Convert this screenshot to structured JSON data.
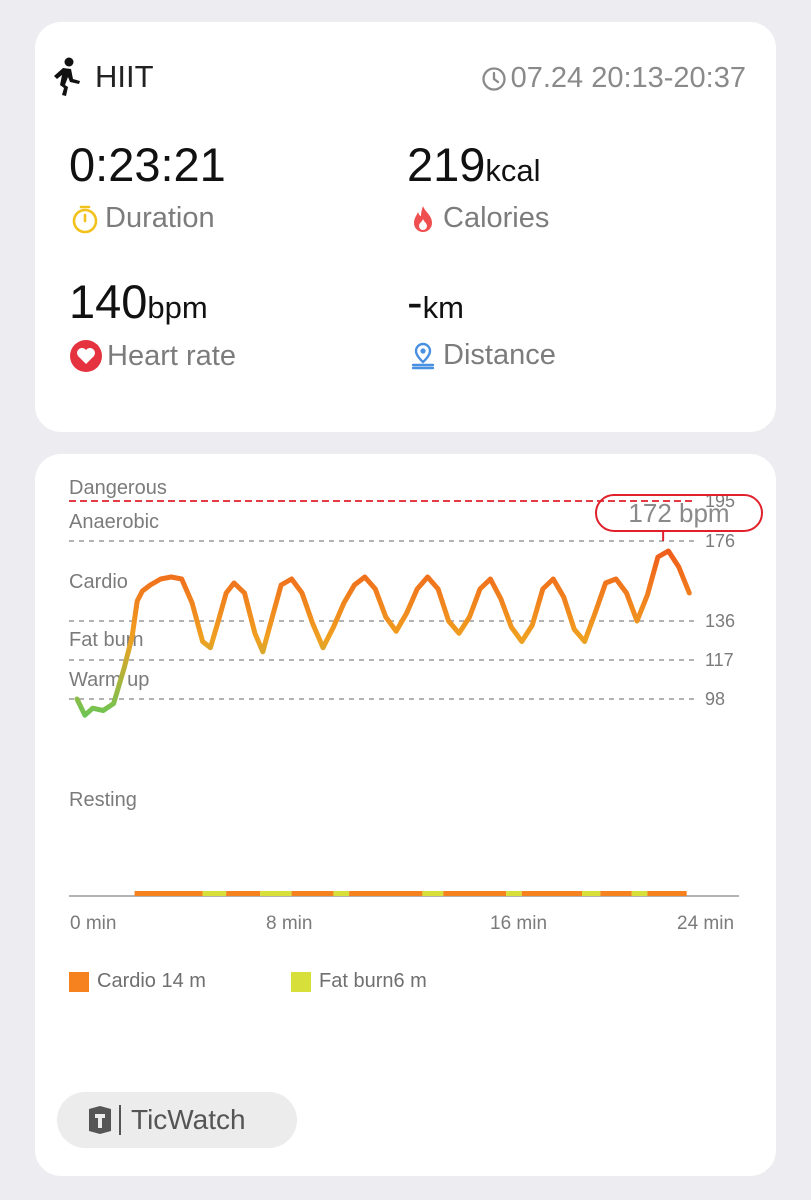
{
  "summary": {
    "activity": "HIIT",
    "activity_icon": "running-person-icon",
    "time_range": "07.24 20:13-20:37",
    "metrics": {
      "duration": {
        "value": "0:23:21",
        "unit": "",
        "label": "Duration",
        "icon": "stopwatch-icon",
        "icon_color": "#f2c11b"
      },
      "calories": {
        "value": "219",
        "unit": "kcal",
        "label": "Calories",
        "icon": "flame-icon",
        "icon_color": "#ef4f4f"
      },
      "heart_rate": {
        "value": "140",
        "unit": "bpm",
        "label": "Heart rate",
        "icon": "heart-icon",
        "icon_color": "#e5323f"
      },
      "distance": {
        "value": "-",
        "unit": "km",
        "label": "Distance",
        "icon": "location-pin-icon",
        "icon_color": "#4a90e2"
      }
    }
  },
  "chart_data": {
    "type": "line",
    "series": [
      {
        "x": [
          0,
          0.3,
          0.6,
          1,
          1.4,
          1.8,
          2.1,
          2.3,
          2.5,
          2.8,
          3.2,
          3.6,
          4,
          4.4,
          4.8,
          5.1,
          5.4,
          5.7,
          6,
          6.4,
          6.8,
          7.1,
          7.4,
          7.8,
          8.2,
          8.6,
          9,
          9.4,
          9.8,
          10.2,
          10.6,
          11,
          11.4,
          11.8,
          12.2,
          12.6,
          13,
          13.4,
          13.8,
          14.2,
          14.6,
          15,
          15.4,
          15.8,
          16.2,
          16.6,
          17,
          17.4,
          17.8,
          18.2,
          18.6,
          19,
          19.4,
          19.8,
          20.2,
          20.6,
          21,
          21.4,
          21.8,
          22.2,
          22.6,
          23,
          23.4
        ],
        "values": [
          98,
          91,
          94,
          93,
          96,
          113,
          128,
          146,
          151,
          154,
          157,
          158,
          157,
          145,
          126,
          123,
          136,
          150,
          155,
          150,
          130,
          121,
          135,
          154,
          157,
          150,
          135,
          123,
          133,
          145,
          154,
          158,
          152,
          138,
          131,
          140,
          152,
          158,
          152,
          136,
          130,
          138,
          152,
          157,
          147,
          133,
          126,
          134,
          152,
          157,
          148,
          132,
          126,
          140,
          155,
          157,
          150,
          136,
          149,
          168,
          171,
          163,
          150
        ]
      }
    ],
    "peak": {
      "label": "172 bpm",
      "x": 22.4,
      "value": 172
    },
    "zones": [
      {
        "name": "Dangerous",
        "threshold": 195
      },
      {
        "name": "Anaerobic",
        "threshold": 176
      },
      {
        "name": "Cardio",
        "threshold": 136
      },
      {
        "name": "Fat burn",
        "threshold": 117
      },
      {
        "name": "Warm up",
        "threshold": 98
      },
      {
        "name": "Resting",
        "threshold": null
      }
    ],
    "x_ticks": [
      "0 min",
      "8 min",
      "16 min",
      "24 min"
    ],
    "x_range": [
      0,
      24
    ],
    "zone_bar": [
      {
        "start": 2.2,
        "end": 4.8,
        "zone": "cardio"
      },
      {
        "start": 4.8,
        "end": 5.7,
        "zone": "fatburn"
      },
      {
        "start": 5.7,
        "end": 7.0,
        "zone": "cardio"
      },
      {
        "start": 7.0,
        "end": 8.2,
        "zone": "fatburn"
      },
      {
        "start": 8.2,
        "end": 9.8,
        "zone": "cardio"
      },
      {
        "start": 9.8,
        "end": 10.4,
        "zone": "fatburn"
      },
      {
        "start": 10.4,
        "end": 13.2,
        "zone": "cardio"
      },
      {
        "start": 13.2,
        "end": 14.0,
        "zone": "fatburn"
      },
      {
        "start": 14.0,
        "end": 16.4,
        "zone": "cardio"
      },
      {
        "start": 16.4,
        "end": 17.0,
        "zone": "fatburn"
      },
      {
        "start": 17.0,
        "end": 19.3,
        "zone": "cardio"
      },
      {
        "start": 19.3,
        "end": 20.0,
        "zone": "fatburn"
      },
      {
        "start": 20.0,
        "end": 21.2,
        "zone": "cardio"
      },
      {
        "start": 21.2,
        "end": 21.8,
        "zone": "fatburn"
      },
      {
        "start": 21.8,
        "end": 23.3,
        "zone": "cardio"
      }
    ],
    "legend": [
      {
        "key": "cardio",
        "label": "Cardio 14 m",
        "color": "#f5821f"
      },
      {
        "key": "fatburn",
        "label": "Fat burn6 m",
        "color": "#d7df3b"
      }
    ],
    "colors": {
      "dangerous": "#e0202a",
      "line_low": "#5fc95a",
      "line_mid": "#f0a020",
      "line_high": "#f0501a"
    }
  },
  "device": {
    "name": "TicWatch",
    "icon": "ticwatch-logo-icon"
  }
}
